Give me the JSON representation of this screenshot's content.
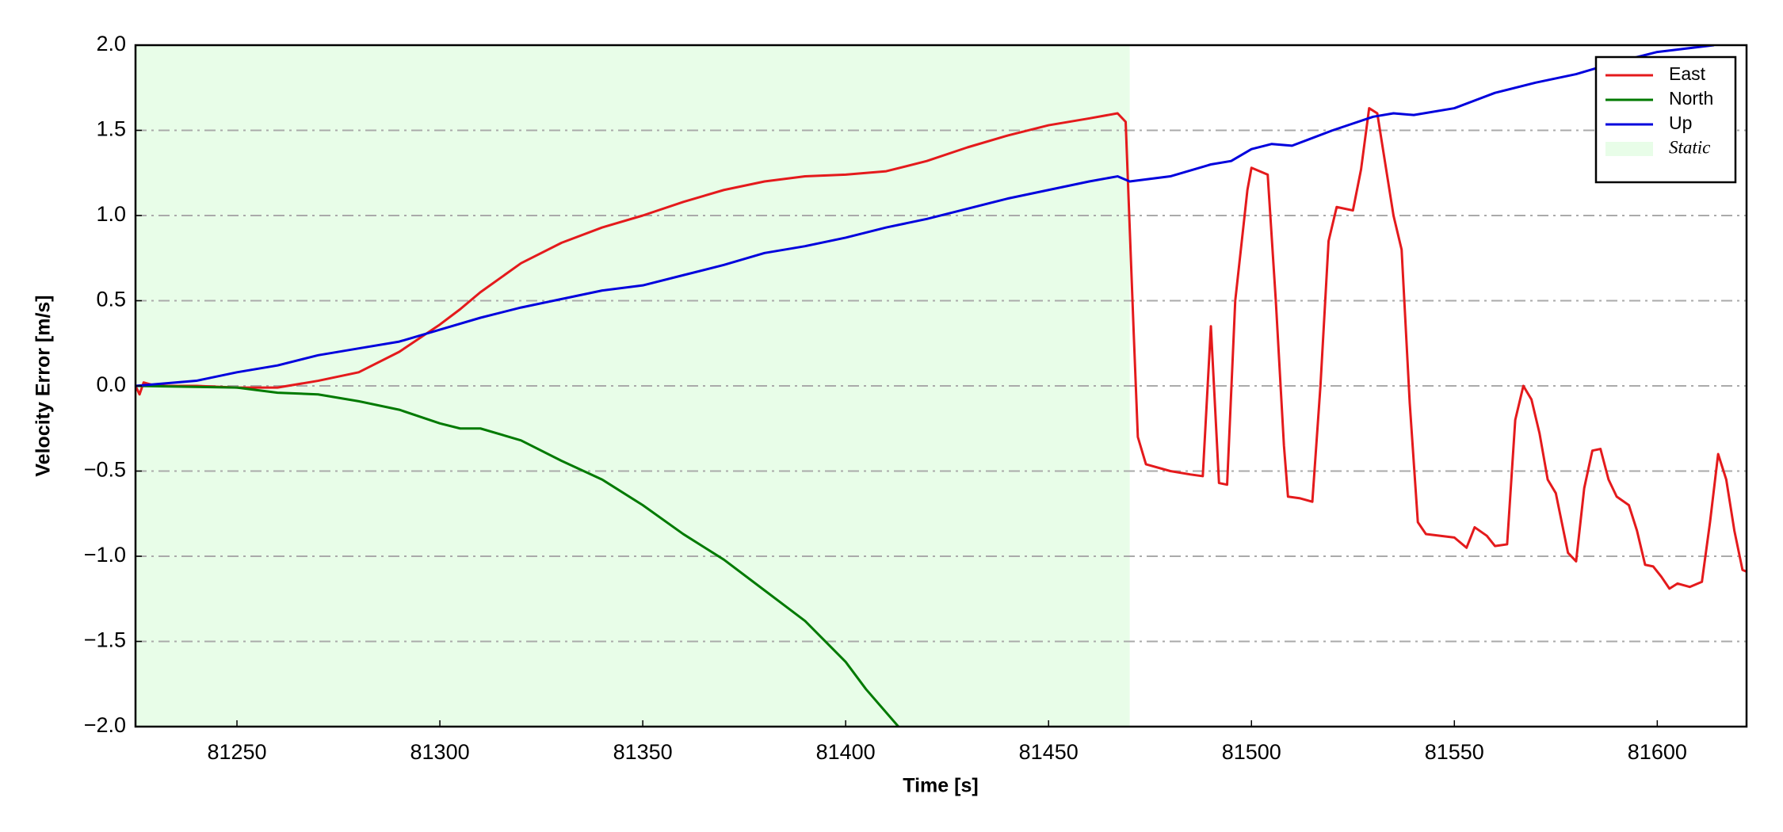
{
  "chart_data": {
    "type": "line",
    "xlabel": "Time [s]",
    "ylabel": "Velocity Error [m/s]",
    "xlim": [
      81225,
      81622
    ],
    "ylim": [
      -2,
      2
    ],
    "xticks": [
      81250,
      81300,
      81350,
      81400,
      81450,
      81500,
      81550,
      81600
    ],
    "yticks": [
      {
        "value": -2,
        "label": "−2.0"
      },
      {
        "value": -1.5,
        "label": "−1.5"
      },
      {
        "value": -1,
        "label": "−1.0"
      },
      {
        "value": -0.5,
        "label": "−0.5"
      },
      {
        "value": 0,
        "label": "0.0"
      },
      {
        "value": 0.5,
        "label": "0.5"
      },
      {
        "value": 1,
        "label": "1.0"
      },
      {
        "value": 1.5,
        "label": "1.5"
      },
      {
        "value": 2,
        "label": "2.0"
      }
    ],
    "grid": true,
    "legend": "upper right",
    "shade": {
      "name": "Static",
      "x": [
        81225,
        81470
      ],
      "color": "#e8fde8"
    },
    "series": [
      {
        "name": "East",
        "color": "#e41a1c",
        "x": [
          81225,
          81226,
          81227,
          81230,
          81240,
          81250,
          81260,
          81270,
          81280,
          81290,
          81300,
          81305,
          81310,
          81320,
          81330,
          81340,
          81350,
          81360,
          81370,
          81380,
          81390,
          81400,
          81410,
          81420,
          81430,
          81440,
          81450,
          81460,
          81467,
          81469,
          81471,
          81472,
          81474,
          81480,
          81485,
          81488,
          81490,
          81492,
          81494,
          81496,
          81499,
          81500,
          81504,
          81506,
          81508,
          81509,
          81512,
          81515,
          81517,
          81519,
          81521,
          81525,
          81527,
          81529,
          81531,
          81535,
          81537,
          81539,
          81541,
          81543,
          81550,
          81553,
          81555,
          81558,
          81560,
          81563,
          81565,
          81567,
          81569,
          81571,
          81573,
          81575,
          81578,
          81580,
          81582,
          81584,
          81586,
          81588,
          81590,
          81593,
          81595,
          81597,
          81599,
          81601,
          81603,
          81605,
          81608,
          81611,
          81613,
          81615,
          81617,
          81619,
          81621,
          81622
        ],
        "values": [
          0,
          -0.05,
          0.02,
          0,
          0,
          -0.01,
          -0.01,
          0.03,
          0.08,
          0.2,
          0.36,
          0.45,
          0.55,
          0.72,
          0.84,
          0.93,
          1.0,
          1.08,
          1.15,
          1.2,
          1.23,
          1.24,
          1.26,
          1.32,
          1.4,
          1.47,
          1.53,
          1.57,
          1.6,
          1.55,
          0.3,
          -0.3,
          -0.46,
          -0.5,
          -0.52,
          -0.53,
          0.35,
          -0.57,
          -0.58,
          0.5,
          1.15,
          1.28,
          1.24,
          0.5,
          -0.35,
          -0.65,
          -0.66,
          -0.68,
          0.0,
          0.85,
          1.05,
          1.03,
          1.27,
          1.63,
          1.6,
          1.0,
          0.8,
          -0.1,
          -0.8,
          -0.87,
          -0.89,
          -0.95,
          -0.83,
          -0.88,
          -0.94,
          -0.93,
          -0.2,
          0,
          -0.08,
          -0.28,
          -0.55,
          -0.63,
          -0.98,
          -1.03,
          -0.6,
          -0.38,
          -0.37,
          -0.55,
          -0.65,
          -0.7,
          -0.85,
          -1.05,
          -1.06,
          -1.12,
          -1.19,
          -1.16,
          -1.18,
          -1.15,
          -0.8,
          -0.4,
          -0.55,
          -0.85,
          -1.08,
          -1.09
        ]
      },
      {
        "name": "North",
        "color": "#007a00",
        "x": [
          81225,
          81250,
          81260,
          81270,
          81280,
          81290,
          81300,
          81305,
          81310,
          81320,
          81330,
          81340,
          81350,
          81360,
          81370,
          81380,
          81390,
          81400,
          81405,
          81413
        ],
        "values": [
          0,
          -0.01,
          -0.04,
          -0.05,
          -0.09,
          -0.14,
          -0.22,
          -0.25,
          -0.25,
          -0.32,
          -0.44,
          -0.55,
          -0.7,
          -0.87,
          -1.02,
          -1.2,
          -1.38,
          -1.62,
          -1.78,
          -2.0
        ]
      },
      {
        "name": "Up",
        "color": "#0000dd",
        "x": [
          81225,
          81240,
          81250,
          81260,
          81270,
          81280,
          81290,
          81300,
          81310,
          81320,
          81330,
          81340,
          81350,
          81360,
          81370,
          81380,
          81390,
          81400,
          81410,
          81420,
          81430,
          81440,
          81450,
          81460,
          81467,
          81470,
          81480,
          81490,
          81495,
          81500,
          81505,
          81510,
          81520,
          81530,
          81535,
          81540,
          81550,
          81560,
          81570,
          81580,
          81590,
          81600,
          81614
        ],
        "values": [
          0,
          0.03,
          0.08,
          0.12,
          0.18,
          0.22,
          0.26,
          0.33,
          0.4,
          0.46,
          0.51,
          0.56,
          0.59,
          0.65,
          0.71,
          0.78,
          0.82,
          0.87,
          0.93,
          0.98,
          1.04,
          1.1,
          1.15,
          1.2,
          1.23,
          1.2,
          1.23,
          1.3,
          1.32,
          1.39,
          1.42,
          1.41,
          1.5,
          1.58,
          1.6,
          1.59,
          1.63,
          1.72,
          1.78,
          1.83,
          1.9,
          1.96,
          2.0
        ]
      }
    ]
  }
}
